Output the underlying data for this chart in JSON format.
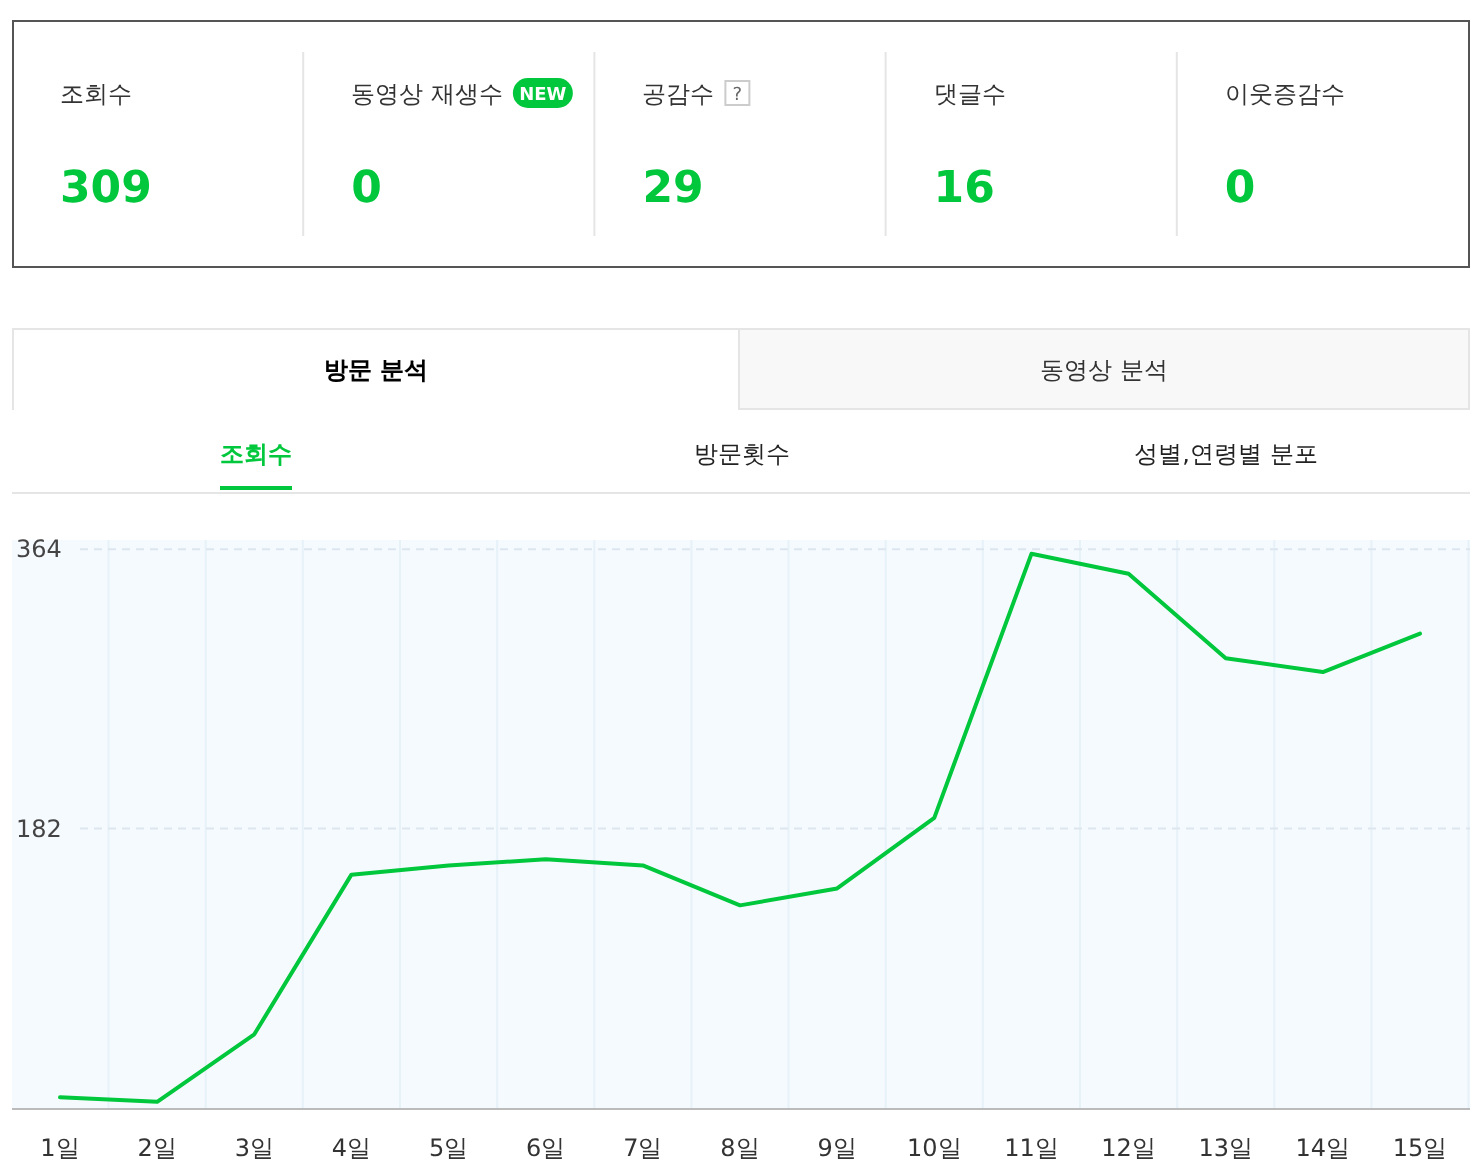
{
  "chart_data": [
    {
      "type": "other",
      "categories": [
        "조회수",
        "동영상 재생수",
        "공감수",
        "댓글수",
        "이웃증감수"
      ],
      "values": [
        309,
        0,
        29,
        16,
        0
      ],
      "data_labels": true,
      "annotations": [
        "NEW",
        "?"
      ]
    },
    {
      "type": "line",
      "annotations": [
        "방문 분석",
        "동영상 분석",
        "조회수",
        "방문횟수",
        "성별,연령별 분포"
      ],
      "categories": [
        "1일",
        "2일",
        "3일",
        "4일",
        "5일",
        "6일",
        "7일",
        "8일",
        "9일",
        "10일",
        "11일",
        "12일",
        "13일",
        "14일",
        "15일"
      ],
      "series": [
        {
          "color": "#00c73c",
          "values": [
            7,
            4,
            48,
            152,
            158,
            162,
            158,
            132,
            143,
            189,
            361,
            348,
            293,
            284,
            309
          ]
        }
      ],
      "ylim": [
        0,
        370
      ],
      "yticks": [
        182,
        364
      ],
      "grid": true,
      "marker": "none",
      "line_style": "solid"
    }
  ]
}
